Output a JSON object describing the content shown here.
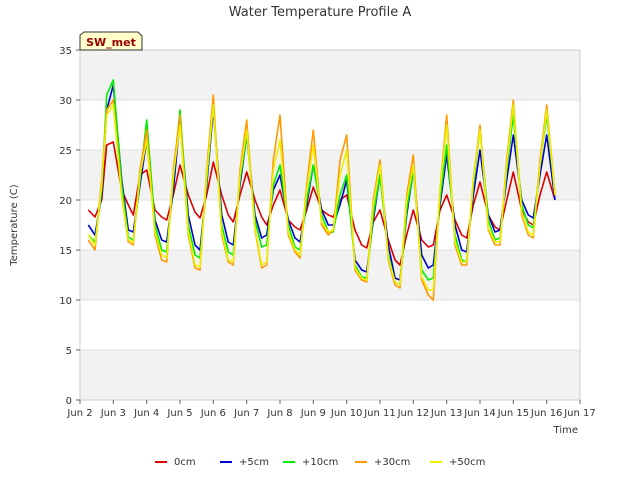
{
  "chart_data": {
    "type": "line",
    "title": "Water Temperature Profile A",
    "xlabel": "Time",
    "ylabel": "Temperature (C)",
    "site_label": "SW_met",
    "ylim": [
      0,
      35
    ],
    "yticks": [
      0,
      5,
      10,
      15,
      20,
      25,
      30,
      35
    ],
    "xlim": [
      2,
      17
    ],
    "xticks": [
      {
        "v": 2,
        "label": "Jun 2"
      },
      {
        "v": 3,
        "label": "Jun 3"
      },
      {
        "v": 4,
        "label": "Jun 4"
      },
      {
        "v": 5,
        "label": "Jun 5"
      },
      {
        "v": 6,
        "label": "Jun 6"
      },
      {
        "v": 7,
        "label": "Jun 7"
      },
      {
        "v": 8,
        "label": "Jun 8"
      },
      {
        "v": 9,
        "label": "Jun 9"
      },
      {
        "v": 10,
        "label": "Jun 10"
      },
      {
        "v": 11,
        "label": "Jun 11"
      },
      {
        "v": 12,
        "label": "Jun 12"
      },
      {
        "v": 13,
        "label": "Jun 13"
      },
      {
        "v": 14,
        "label": "Jun 14"
      },
      {
        "v": 15,
        "label": "Jun 15"
      },
      {
        "v": 16,
        "label": "Jun 16"
      },
      {
        "v": 17,
        "label": "Jun 17"
      }
    ],
    "grid": true,
    "legend_position": "bottom",
    "series": [
      {
        "name": "0cm",
        "color": "#dd0000",
        "x": [
          2.25,
          2.45,
          2.65,
          2.8,
          3.0,
          3.25,
          3.45,
          3.6,
          3.8,
          4.0,
          4.25,
          4.45,
          4.6,
          4.8,
          5.0,
          5.25,
          5.45,
          5.6,
          5.8,
          6.0,
          6.25,
          6.45,
          6.6,
          6.8,
          7.0,
          7.25,
          7.45,
          7.6,
          7.8,
          8.0,
          8.25,
          8.45,
          8.6,
          8.8,
          9.0,
          9.25,
          9.45,
          9.6,
          9.8,
          10.0,
          10.25,
          10.45,
          10.6,
          10.8,
          11.0,
          11.25,
          11.45,
          11.6,
          11.8,
          12.0,
          12.25,
          12.45,
          12.6,
          12.8,
          13.0,
          13.25,
          13.45,
          13.6,
          13.8,
          14.0,
          14.25,
          14.45,
          14.6,
          14.8,
          15.0,
          15.25,
          15.45,
          15.6,
          15.8,
          16.0,
          16.25
        ],
        "y": [
          19.0,
          18.3,
          20.0,
          25.5,
          25.8,
          21.0,
          19.5,
          18.5,
          22.5,
          23.0,
          19.0,
          18.3,
          18.0,
          20.5,
          23.5,
          20.5,
          18.8,
          18.2,
          20.5,
          23.8,
          20.5,
          18.5,
          17.8,
          20.5,
          22.8,
          20.0,
          18.3,
          17.5,
          19.5,
          21.0,
          18.0,
          17.3,
          17.0,
          19.0,
          21.3,
          19.0,
          18.5,
          18.3,
          20.0,
          20.5,
          17.0,
          15.5,
          15.2,
          17.8,
          19.0,
          16.0,
          14.0,
          13.5,
          16.5,
          19.0,
          16.0,
          15.3,
          15.5,
          19.0,
          20.5,
          18.0,
          16.5,
          16.2,
          19.5,
          21.8,
          18.5,
          17.3,
          17.0,
          20.0,
          22.8,
          19.0,
          17.8,
          17.5,
          20.5,
          22.8,
          20.0
        ]
      },
      {
        "name": "+5cm",
        "color": "#0000cc",
        "x": [
          2.25,
          2.45,
          2.65,
          2.8,
          3.0,
          3.25,
          3.45,
          3.6,
          3.8,
          4.0,
          4.25,
          4.45,
          4.6,
          4.8,
          5.0,
          5.25,
          5.45,
          5.6,
          5.8,
          6.0,
          6.25,
          6.45,
          6.6,
          6.8,
          7.0,
          7.25,
          7.45,
          7.6,
          7.8,
          8.0,
          8.25,
          8.45,
          8.6,
          8.8,
          9.0,
          9.25,
          9.45,
          9.6,
          9.8,
          10.0,
          10.25,
          10.45,
          10.6,
          10.8,
          11.0,
          11.25,
          11.45,
          11.6,
          11.8,
          12.0,
          12.25,
          12.45,
          12.6,
          12.8,
          13.0,
          13.25,
          13.45,
          13.6,
          13.8,
          14.0,
          14.25,
          14.45,
          14.6,
          14.8,
          15.0,
          15.25,
          15.45,
          15.6,
          15.8,
          16.0,
          16.25
        ],
        "y": [
          17.5,
          16.5,
          20.5,
          29.0,
          31.5,
          22.0,
          17.0,
          16.8,
          21.5,
          26.0,
          18.0,
          16.0,
          15.8,
          21.0,
          28.0,
          18.5,
          15.5,
          15.0,
          21.5,
          29.0,
          18.5,
          15.8,
          15.5,
          21.5,
          26.5,
          18.5,
          16.2,
          16.5,
          21.0,
          22.5,
          18.0,
          16.2,
          15.8,
          19.5,
          23.5,
          19.0,
          17.5,
          17.5,
          19.5,
          22.0,
          14.0,
          13.0,
          12.8,
          18.0,
          22.5,
          15.5,
          12.2,
          12.0,
          18.5,
          23.0,
          14.5,
          13.2,
          13.5,
          19.5,
          24.5,
          17.5,
          15.0,
          14.8,
          20.5,
          25.0,
          18.5,
          16.8,
          17.0,
          22.0,
          26.5,
          20.0,
          18.5,
          18.2,
          22.5,
          26.5,
          20.0
        ]
      },
      {
        "name": "+10cm",
        "color": "#00ee00",
        "x": [
          2.25,
          2.45,
          2.65,
          2.8,
          3.0,
          3.25,
          3.45,
          3.6,
          3.8,
          4.0,
          4.25,
          4.45,
          4.6,
          4.8,
          5.0,
          5.25,
          5.45,
          5.6,
          5.8,
          6.0,
          6.25,
          6.45,
          6.6,
          6.8,
          7.0,
          7.25,
          7.45,
          7.6,
          7.8,
          8.0,
          8.25,
          8.45,
          8.6,
          8.8,
          9.0,
          9.25,
          9.45,
          9.6,
          9.8,
          10.0,
          10.25,
          10.45,
          10.6,
          10.8,
          11.0,
          11.25,
          11.45,
          11.6,
          11.8,
          12.0,
          12.25,
          12.45,
          12.6,
          12.8,
          13.0,
          13.25,
          13.45,
          13.6,
          13.8,
          14.0,
          14.25,
          14.45,
          14.6,
          14.8,
          15.0,
          15.25,
          15.45,
          15.6,
          15.8,
          16.0,
          16.25
        ],
        "y": [
          16.5,
          15.8,
          21.0,
          30.5,
          32.0,
          21.5,
          16.3,
          16.0,
          22.0,
          28.0,
          17.5,
          15.0,
          14.8,
          22.0,
          29.0,
          17.5,
          14.5,
          14.2,
          22.0,
          29.5,
          17.5,
          14.8,
          14.5,
          22.0,
          26.5,
          18.0,
          15.3,
          15.5,
          21.5,
          23.5,
          17.5,
          15.3,
          15.0,
          20.0,
          23.5,
          18.5,
          16.8,
          16.8,
          20.5,
          22.5,
          13.5,
          12.3,
          12.2,
          18.5,
          22.5,
          14.5,
          11.8,
          11.5,
          19.0,
          23.0,
          13.0,
          12.0,
          12.2,
          20.0,
          25.5,
          16.5,
          14.0,
          13.8,
          21.5,
          27.0,
          18.0,
          16.0,
          16.2,
          23.0,
          28.5,
          19.5,
          17.5,
          17.2,
          23.5,
          28.5,
          20.5
        ]
      },
      {
        "name": "+30cm",
        "color": "#ff9900",
        "x": [
          2.25,
          2.45,
          2.65,
          2.8,
          3.0,
          3.25,
          3.45,
          3.6,
          3.8,
          4.0,
          4.25,
          4.45,
          4.6,
          4.8,
          5.0,
          5.25,
          5.45,
          5.6,
          5.8,
          6.0,
          6.25,
          6.45,
          6.6,
          6.8,
          7.0,
          7.25,
          7.45,
          7.6,
          7.8,
          8.0,
          8.25,
          8.45,
          8.6,
          8.8,
          9.0,
          9.25,
          9.45,
          9.6,
          9.8,
          10.0,
          10.25,
          10.45,
          10.6,
          10.8,
          11.0,
          11.25,
          11.45,
          11.6,
          11.8,
          12.0,
          12.25,
          12.45,
          12.6,
          12.8,
          13.0,
          13.25,
          13.45,
          13.6,
          13.8,
          14.0,
          14.25,
          14.45,
          14.6,
          14.8,
          15.0,
          15.25,
          15.45,
          15.6,
          15.8,
          16.0,
          16.25
        ],
        "y": [
          16.0,
          15.0,
          22.0,
          29.0,
          30.0,
          20.5,
          15.8,
          15.5,
          23.0,
          27.0,
          16.5,
          14.0,
          13.8,
          23.0,
          28.5,
          16.5,
          13.2,
          13.0,
          23.0,
          30.5,
          16.5,
          13.8,
          13.5,
          23.0,
          28.0,
          17.0,
          13.2,
          13.5,
          24.0,
          28.5,
          16.5,
          14.8,
          14.2,
          21.5,
          27.0,
          17.5,
          16.5,
          17.0,
          24.0,
          26.5,
          13.0,
          12.0,
          11.8,
          20.0,
          24.0,
          14.0,
          11.5,
          11.2,
          20.5,
          24.5,
          12.0,
          10.5,
          10.0,
          21.0,
          28.5,
          15.5,
          13.5,
          13.5,
          22.0,
          27.5,
          17.0,
          15.5,
          15.5,
          24.0,
          30.0,
          18.5,
          16.5,
          16.2,
          24.0,
          29.5,
          20.5
        ]
      },
      {
        "name": "+50cm",
        "color": "#eeee00",
        "x": [
          2.25,
          2.45,
          2.65,
          2.8,
          3.0,
          3.25,
          3.45,
          3.6,
          3.8,
          4.0,
          4.25,
          4.45,
          4.6,
          4.8,
          5.0,
          5.25,
          5.45,
          5.6,
          5.8,
          6.0,
          6.25,
          6.45,
          6.6,
          6.8,
          7.0,
          7.25,
          7.45,
          7.6,
          7.8,
          8.0,
          8.25,
          8.45,
          8.6,
          8.8,
          9.0,
          9.25,
          9.45,
          9.6,
          9.8,
          10.0,
          10.25,
          10.45,
          10.6,
          10.8,
          11.0,
          11.25,
          11.45,
          11.6,
          11.8,
          12.0,
          12.25,
          12.45,
          12.6,
          12.8,
          13.0,
          13.25,
          13.45,
          13.6,
          13.8,
          14.0,
          14.25,
          14.45,
          14.6,
          14.8,
          15.0,
          15.25,
          15.45,
          15.6,
          15.8,
          16.0,
          16.25
        ],
        "y": [
          16.5,
          15.5,
          21.5,
          28.5,
          29.5,
          20.5,
          16.0,
          15.8,
          22.5,
          26.0,
          16.8,
          14.5,
          14.2,
          22.5,
          27.5,
          16.8,
          13.5,
          13.3,
          22.5,
          29.5,
          16.8,
          14.0,
          13.8,
          22.5,
          27.0,
          17.2,
          13.5,
          13.8,
          23.0,
          26.0,
          16.8,
          15.0,
          14.5,
          21.0,
          25.5,
          17.8,
          16.8,
          17.0,
          22.5,
          25.0,
          13.2,
          12.2,
          12.0,
          19.5,
          23.5,
          14.2,
          11.8,
          11.5,
          20.0,
          23.5,
          12.3,
          11.0,
          11.0,
          21.0,
          27.5,
          15.8,
          13.8,
          13.8,
          22.0,
          27.0,
          17.2,
          15.8,
          15.8,
          23.5,
          29.5,
          18.8,
          16.8,
          16.5,
          23.5,
          29.0,
          20.5
        ]
      }
    ]
  }
}
